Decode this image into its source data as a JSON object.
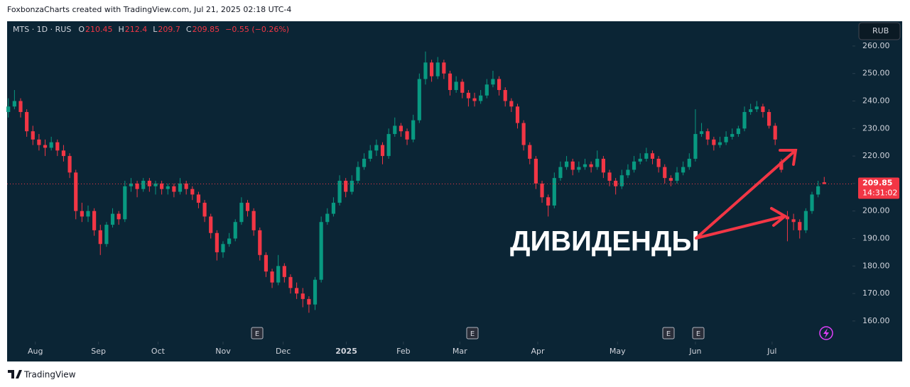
{
  "header": "FoxbonzaCharts created with TradingView.com, Jul 21, 2025 02:18 UTC-4",
  "footer": "TradingView",
  "chart_data": {
    "type": "candlestick",
    "symbol": "MTS · 1D · RUS",
    "legend_labels": [
      "O",
      "H",
      "L",
      "C"
    ],
    "change": "−0.55 (−0.26%)",
    "currency": "RUB",
    "annotation": "ДИВИДЕНДЫ",
    "events": [
      "E",
      "E",
      "E",
      "E"
    ],
    "last_price_label": "209.85",
    "countdown": "14:31:02",
    "up_color": "#089981",
    "down_color": "#f23645",
    "ylim": [
      152.5,
      269
    ],
    "yticks": [
      {
        "value": 160,
        "label": "160.00"
      },
      {
        "value": 170,
        "label": "170.00"
      },
      {
        "value": 180,
        "label": "180.00"
      },
      {
        "value": 190,
        "label": "190.00"
      },
      {
        "value": 200,
        "label": "200.00"
      },
      {
        "value": 210,
        "label": "210.00"
      },
      {
        "value": 220,
        "label": "220.00"
      },
      {
        "value": 230,
        "label": "230.00"
      },
      {
        "value": 240,
        "label": "240.00"
      },
      {
        "value": 250,
        "label": "250.00"
      },
      {
        "value": 260,
        "label": "260.00"
      }
    ],
    "xlim": [
      -0.2,
      137.6
    ],
    "xticks": [
      {
        "value": 4.4,
        "label": "Aug"
      },
      {
        "value": 14.7,
        "label": "Sep"
      },
      {
        "value": 24.4,
        "label": "Oct"
      },
      {
        "value": 35,
        "label": "Nov"
      },
      {
        "value": 44.8,
        "label": "Dec"
      },
      {
        "value": 55.1,
        "label": "2025"
      },
      {
        "value": 64.4,
        "label": "Feb"
      },
      {
        "value": 73.6,
        "label": "Mar"
      },
      {
        "value": 86.3,
        "label": "Apr"
      },
      {
        "value": 99.3,
        "label": "May"
      },
      {
        "value": 112,
        "label": "Jun"
      },
      {
        "value": 124.5,
        "label": "Jul"
      }
    ],
    "ohlc": [
      [
        236,
        241,
        234,
        238
      ],
      [
        238,
        244,
        237,
        240
      ],
      [
        240,
        241,
        234,
        236
      ],
      [
        236,
        237,
        227,
        229
      ],
      [
        229,
        231,
        224,
        226
      ],
      [
        226,
        228,
        222,
        224
      ],
      [
        224,
        226,
        220,
        223
      ],
      [
        223,
        227,
        222,
        225
      ],
      [
        225,
        226,
        220,
        222
      ],
      [
        222,
        224,
        218,
        220
      ],
      [
        220,
        221,
        212,
        214
      ],
      [
        214,
        215,
        197,
        200
      ],
      [
        200,
        203,
        196,
        198
      ],
      [
        198,
        202,
        196,
        200
      ],
      [
        200,
        201,
        191,
        193
      ],
      [
        193,
        195,
        184,
        188
      ],
      [
        188,
        196,
        187,
        195
      ],
      [
        195,
        201,
        194,
        199
      ],
      [
        199,
        200,
        195,
        197
      ],
      [
        197,
        211,
        196,
        209
      ],
      [
        209,
        212,
        207,
        210
      ],
      [
        210,
        211,
        205,
        208
      ],
      [
        208,
        212,
        207,
        211
      ],
      [
        211,
        212,
        207,
        209
      ],
      [
        209,
        211,
        206,
        210
      ],
      [
        210,
        211,
        206,
        208
      ],
      [
        208,
        210,
        206,
        209
      ],
      [
        209,
        210,
        205,
        207
      ],
      [
        207,
        212,
        206,
        210
      ],
      [
        210,
        211,
        206,
        208
      ],
      [
        208,
        209,
        204,
        206
      ],
      [
        206,
        207,
        201,
        203
      ],
      [
        203,
        204,
        196,
        198
      ],
      [
        198,
        199,
        190,
        192
      ],
      [
        192,
        193,
        182,
        185
      ],
      [
        185,
        189,
        183,
        188
      ],
      [
        188,
        192,
        187,
        190
      ],
      [
        190,
        197,
        189,
        196
      ],
      [
        196,
        205,
        195,
        203
      ],
      [
        203,
        204,
        198,
        200
      ],
      [
        200,
        201,
        191,
        193
      ],
      [
        193,
        194,
        182,
        184
      ],
      [
        184,
        185,
        176,
        178
      ],
      [
        178,
        179,
        172,
        174
      ],
      [
        174,
        184,
        173,
        180
      ],
      [
        180,
        181,
        174,
        176
      ],
      [
        176,
        177,
        170,
        172
      ],
      [
        172,
        174,
        168,
        170
      ],
      [
        170,
        172,
        165,
        168
      ],
      [
        168,
        169,
        163,
        166
      ],
      [
        166,
        176,
        164,
        175
      ],
      [
        175,
        198,
        174,
        196
      ],
      [
        196,
        201,
        195,
        199
      ],
      [
        199,
        205,
        198,
        203
      ],
      [
        203,
        213,
        202,
        211
      ],
      [
        211,
        212,
        205,
        207
      ],
      [
        207,
        213,
        206,
        211
      ],
      [
        211,
        218,
        210,
        216
      ],
      [
        216,
        221,
        215,
        219
      ],
      [
        219,
        224,
        218,
        222
      ],
      [
        222,
        226,
        220,
        224
      ],
      [
        224,
        225,
        217,
        220
      ],
      [
        220,
        230,
        219,
        228
      ],
      [
        228,
        234,
        227,
        231
      ],
      [
        231,
        232,
        227,
        229
      ],
      [
        229,
        230,
        224,
        226
      ],
      [
        226,
        235,
        225,
        233
      ],
      [
        233,
        250,
        232,
        248
      ],
      [
        248,
        258,
        246,
        254
      ],
      [
        254,
        255,
        247,
        249
      ],
      [
        249,
        256,
        248,
        254
      ],
      [
        254,
        255,
        248,
        250
      ],
      [
        250,
        251,
        242,
        244
      ],
      [
        244,
        249,
        243,
        247
      ],
      [
        247,
        248,
        241,
        243
      ],
      [
        243,
        244,
        238,
        241
      ],
      [
        241,
        243,
        238,
        240
      ],
      [
        240,
        244,
        239,
        242
      ],
      [
        242,
        248,
        241,
        246
      ],
      [
        246,
        251,
        245,
        248
      ],
      [
        248,
        249,
        242,
        244
      ],
      [
        244,
        245,
        238,
        240
      ],
      [
        240,
        241,
        236,
        238
      ],
      [
        238,
        239,
        230,
        232
      ],
      [
        232,
        233,
        222,
        224
      ],
      [
        224,
        225,
        217,
        219
      ],
      [
        219,
        220,
        208,
        210
      ],
      [
        210,
        211,
        203,
        205
      ],
      [
        205,
        206,
        198,
        202
      ],
      [
        202,
        214,
        201,
        212
      ],
      [
        212,
        218,
        211,
        216
      ],
      [
        216,
        220,
        215,
        218
      ],
      [
        218,
        219,
        213,
        215
      ],
      [
        215,
        218,
        214,
        216
      ],
      [
        216,
        219,
        215,
        217
      ],
      [
        217,
        218,
        214,
        216
      ],
      [
        216,
        222,
        215,
        219
      ],
      [
        219,
        220,
        212,
        214
      ],
      [
        214,
        215,
        209,
        211
      ],
      [
        211,
        212,
        206,
        209
      ],
      [
        209,
        215,
        208,
        213
      ],
      [
        213,
        217,
        212,
        215
      ],
      [
        215,
        220,
        214,
        218
      ],
      [
        218,
        221,
        217,
        219
      ],
      [
        219,
        223,
        218,
        221
      ],
      [
        221,
        222,
        217,
        219
      ],
      [
        219,
        220,
        214,
        216
      ],
      [
        216,
        217,
        210,
        212
      ],
      [
        212,
        213,
        209,
        211
      ],
      [
        211,
        216,
        210,
        214
      ],
      [
        214,
        218,
        213,
        216
      ],
      [
        216,
        221,
        215,
        219
      ],
      [
        219,
        237,
        218,
        228
      ],
      [
        228,
        232,
        227,
        229
      ],
      [
        229,
        230,
        224,
        226
      ],
      [
        226,
        227,
        222,
        224
      ],
      [
        224,
        227,
        223,
        225
      ],
      [
        225,
        229,
        224,
        227
      ],
      [
        227,
        230,
        226,
        228
      ],
      [
        228,
        231,
        227,
        230
      ],
      [
        230,
        238,
        229,
        236
      ],
      [
        236,
        239,
        235,
        237
      ],
      [
        237,
        240,
        236,
        238
      ],
      [
        238,
        239,
        234,
        236
      ],
      [
        236,
        237,
        230,
        231
      ],
      [
        231,
        232,
        224,
        226
      ],
      [
        218,
        219,
        214,
        215
      ],
      [
        198,
        200,
        189,
        197
      ],
      [
        197,
        199,
        193,
        196
      ],
      [
        196,
        197,
        190,
        193
      ],
      [
        193,
        201,
        192,
        200
      ],
      [
        200,
        207,
        199,
        206
      ],
      [
        206,
        211,
        205,
        209
      ],
      [
        210.45,
        212.4,
        209.7,
        209.85
      ]
    ]
  }
}
